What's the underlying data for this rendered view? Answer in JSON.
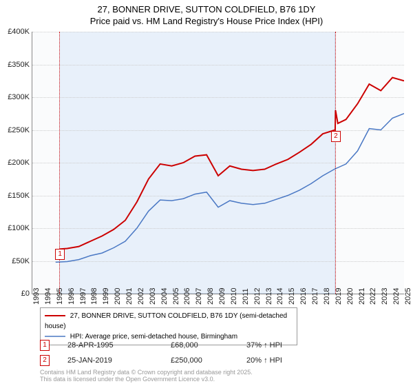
{
  "title": {
    "main": "27, BONNER DRIVE, SUTTON COLDFIELD, B76 1DY",
    "sub": "Price paid vs. HM Land Registry's House Price Index (HPI)",
    "fontsize": 13,
    "color": "#000000"
  },
  "chart": {
    "type": "line",
    "background_color": "#fafbfc",
    "shade_color": "#e8f0fa",
    "grid_color": "#cccccc",
    "axis_color": "#888888",
    "y": {
      "min": 0,
      "max": 400000,
      "step": 50000,
      "labels": [
        "£0",
        "£50K",
        "£100K",
        "£150K",
        "£200K",
        "£250K",
        "£300K",
        "£350K",
        "£400K"
      ],
      "fontsize": 11
    },
    "x": {
      "min": 1993,
      "max": 2025,
      "labels": [
        "1993",
        "1994",
        "1995",
        "1996",
        "1997",
        "1998",
        "1999",
        "2000",
        "2001",
        "2002",
        "2003",
        "2004",
        "2005",
        "2006",
        "2007",
        "2008",
        "2009",
        "2010",
        "2011",
        "2012",
        "2013",
        "2014",
        "2015",
        "2016",
        "2017",
        "2018",
        "2019",
        "2020",
        "2021",
        "2022",
        "2023",
        "2024",
        "2025"
      ],
      "fontsize": 11
    },
    "shade_region": {
      "start_year": 1995.32,
      "end_year": 2019.07
    },
    "markers": [
      {
        "id": "1",
        "year": 1995.32,
        "y_pos": 0.83
      },
      {
        "id": "2",
        "year": 2019.07,
        "y_pos": 0.38
      }
    ],
    "series": [
      {
        "name": "27, BONNER DRIVE, SUTTON COLDFIELD, B76 1DY (semi-detached house)",
        "color": "#cc0000",
        "stroke_width": 2,
        "data": [
          [
            1995.32,
            68000
          ],
          [
            1996,
            69000
          ],
          [
            1997,
            72000
          ],
          [
            1998,
            80000
          ],
          [
            1999,
            88000
          ],
          [
            2000,
            98000
          ],
          [
            2001,
            112000
          ],
          [
            2002,
            140000
          ],
          [
            2003,
            175000
          ],
          [
            2004,
            198000
          ],
          [
            2005,
            195000
          ],
          [
            2006,
            200000
          ],
          [
            2007,
            210000
          ],
          [
            2008,
            212000
          ],
          [
            2009,
            180000
          ],
          [
            2010,
            195000
          ],
          [
            2011,
            190000
          ],
          [
            2012,
            188000
          ],
          [
            2013,
            190000
          ],
          [
            2014,
            198000
          ],
          [
            2015,
            205000
          ],
          [
            2016,
            216000
          ],
          [
            2017,
            228000
          ],
          [
            2018,
            244000
          ],
          [
            2019.07,
            250000
          ],
          [
            2019.1,
            280000
          ],
          [
            2019.3,
            260000
          ],
          [
            2020,
            266000
          ],
          [
            2021,
            290000
          ],
          [
            2022,
            320000
          ],
          [
            2023,
            310000
          ],
          [
            2024,
            330000
          ],
          [
            2025,
            325000
          ]
        ]
      },
      {
        "name": "HPI: Average price, semi-detached house, Birmingham",
        "color": "#4a78c4",
        "stroke_width": 1.5,
        "data": [
          [
            1995,
            48000
          ],
          [
            1996,
            49000
          ],
          [
            1997,
            52000
          ],
          [
            1998,
            58000
          ],
          [
            1999,
            62000
          ],
          [
            2000,
            70000
          ],
          [
            2001,
            80000
          ],
          [
            2002,
            100000
          ],
          [
            2003,
            126000
          ],
          [
            2004,
            143000
          ],
          [
            2005,
            142000
          ],
          [
            2006,
            145000
          ],
          [
            2007,
            152000
          ],
          [
            2008,
            155000
          ],
          [
            2009,
            132000
          ],
          [
            2010,
            142000
          ],
          [
            2011,
            138000
          ],
          [
            2012,
            136000
          ],
          [
            2013,
            138000
          ],
          [
            2014,
            144000
          ],
          [
            2015,
            150000
          ],
          [
            2016,
            158000
          ],
          [
            2017,
            168000
          ],
          [
            2018,
            180000
          ],
          [
            2019,
            190000
          ],
          [
            2020,
            198000
          ],
          [
            2021,
            218000
          ],
          [
            2022,
            252000
          ],
          [
            2023,
            250000
          ],
          [
            2024,
            268000
          ],
          [
            2025,
            275000
          ]
        ]
      }
    ]
  },
  "legend": {
    "border_color": "#999999",
    "fontsize": 10
  },
  "sales": [
    {
      "marker": "1",
      "date": "28-APR-1995",
      "price": "£68,000",
      "hpi": "37% ↑ HPI"
    },
    {
      "marker": "2",
      "date": "25-JAN-2019",
      "price": "£250,000",
      "hpi": "20% ↑ HPI"
    }
  ],
  "attribution": "Contains HM Land Registry data © Crown copyright and database right 2025.\nThis data is licensed under the Open Government Licence v3.0."
}
